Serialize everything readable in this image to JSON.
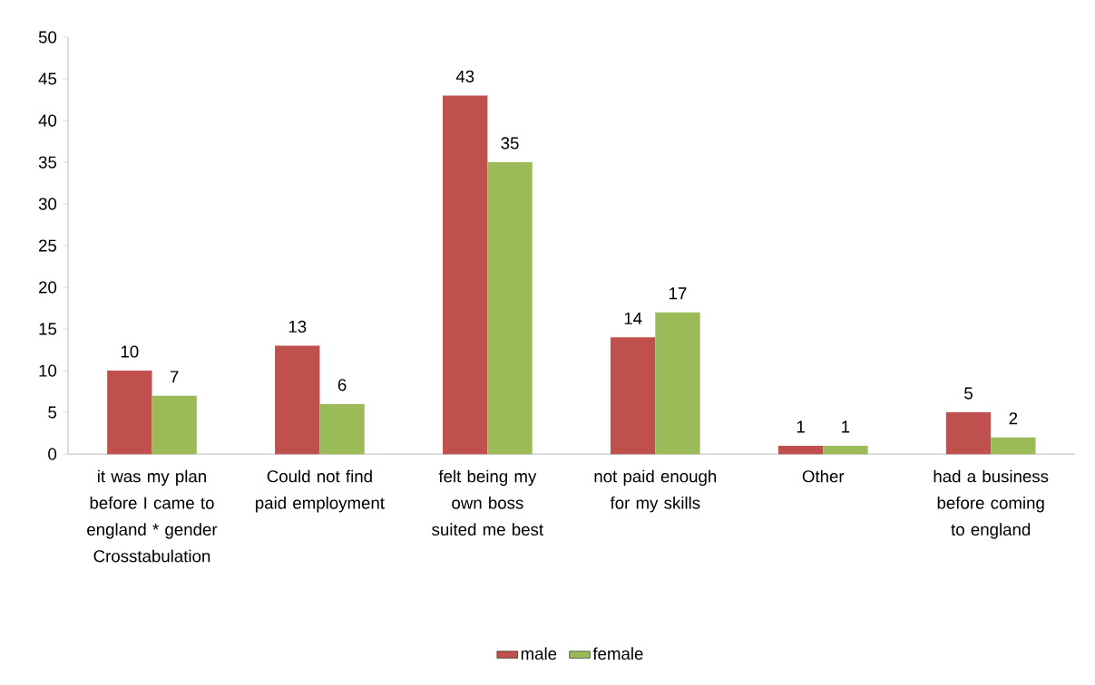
{
  "chart_data": {
    "type": "bar",
    "categories": [
      "it was my plan before I came to england * gender Crosstabulation",
      "Could not find paid employment",
      "felt being my own boss suited me best",
      "not paid enough for my skills",
      "Other",
      "had a business before coming to england"
    ],
    "series": [
      {
        "name": "male",
        "color": "#c0504d",
        "values": [
          10,
          13,
          43,
          14,
          1,
          5
        ]
      },
      {
        "name": "female",
        "color": "#9bbb59",
        "values": [
          7,
          6,
          35,
          17,
          1,
          2
        ]
      }
    ],
    "ylim": [
      0,
      50
    ],
    "yticks": [
      0,
      5,
      10,
      15,
      20,
      25,
      30,
      35,
      40,
      45,
      50
    ],
    "data_labels": true,
    "legend": "bottom"
  }
}
